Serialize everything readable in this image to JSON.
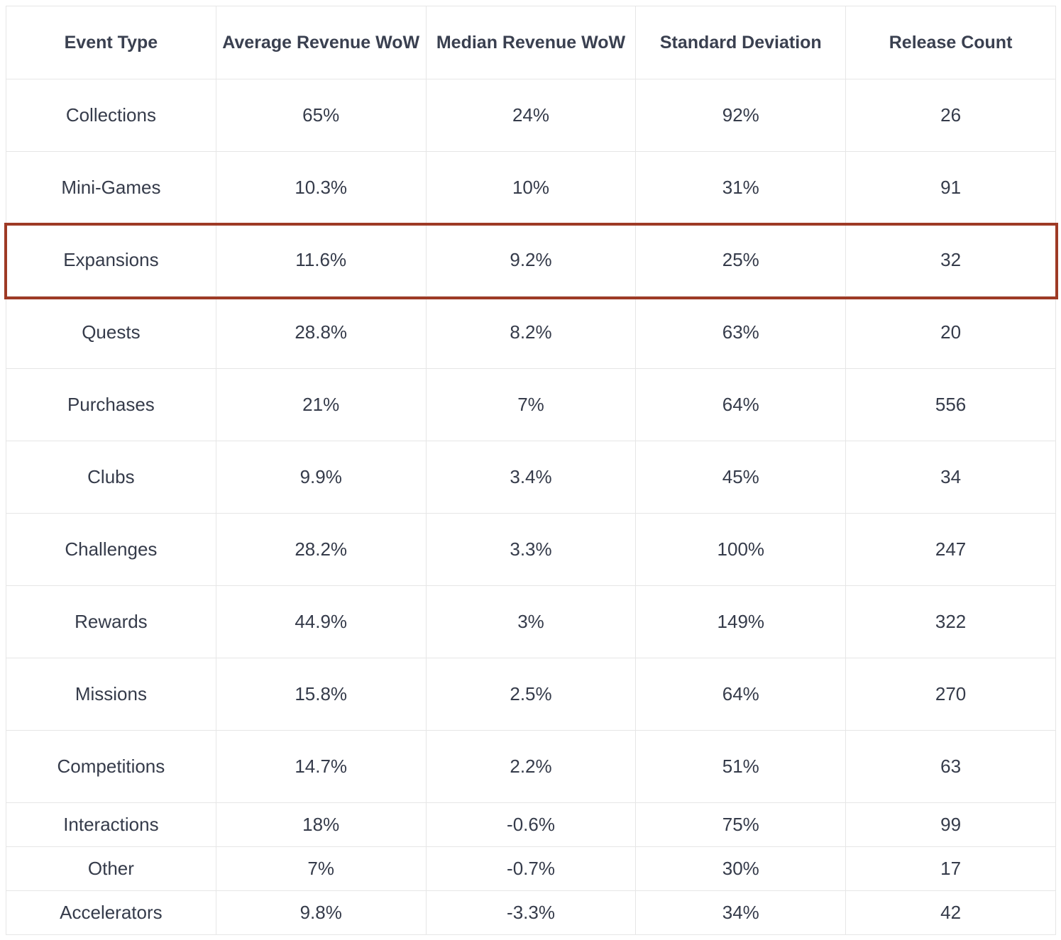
{
  "table": {
    "headers": [
      "Event Type",
      "Average Revenue WoW",
      "Median Revenue WoW",
      "Standard Deviation",
      "Release Count"
    ],
    "rows": [
      [
        "Collections",
        "65%",
        "24%",
        "92%",
        "26"
      ],
      [
        "Mini-Games",
        "10.3%",
        "10%",
        "31%",
        "91"
      ],
      [
        "Expansions",
        "11.6%",
        "9.2%",
        "25%",
        "32"
      ],
      [
        "Quests",
        "28.8%",
        "8.2%",
        "63%",
        "20"
      ],
      [
        "Purchases",
        "21%",
        "7%",
        "64%",
        "556"
      ],
      [
        "Clubs",
        "9.9%",
        "3.4%",
        "45%",
        "34"
      ],
      [
        "Challenges",
        "28.2%",
        "3.3%",
        "100%",
        "247"
      ],
      [
        "Rewards",
        "44.9%",
        "3%",
        "149%",
        "322"
      ],
      [
        "Missions",
        "15.8%",
        "2.5%",
        "64%",
        "270"
      ],
      [
        "Competitions",
        "14.7%",
        "2.2%",
        "51%",
        "63"
      ],
      [
        "Interactions",
        "18%",
        "-0.6%",
        "75%",
        "99"
      ],
      [
        "Other",
        "7%",
        "-0.7%",
        "30%",
        "17"
      ],
      [
        "Accelerators",
        "9.8%",
        "-3.3%",
        "34%",
        "42"
      ]
    ]
  },
  "highlight": {
    "row_label": "Expansions",
    "color": "#9e3a25"
  },
  "colors": {
    "text": "#353b4a",
    "border": "#e6e6e6"
  }
}
